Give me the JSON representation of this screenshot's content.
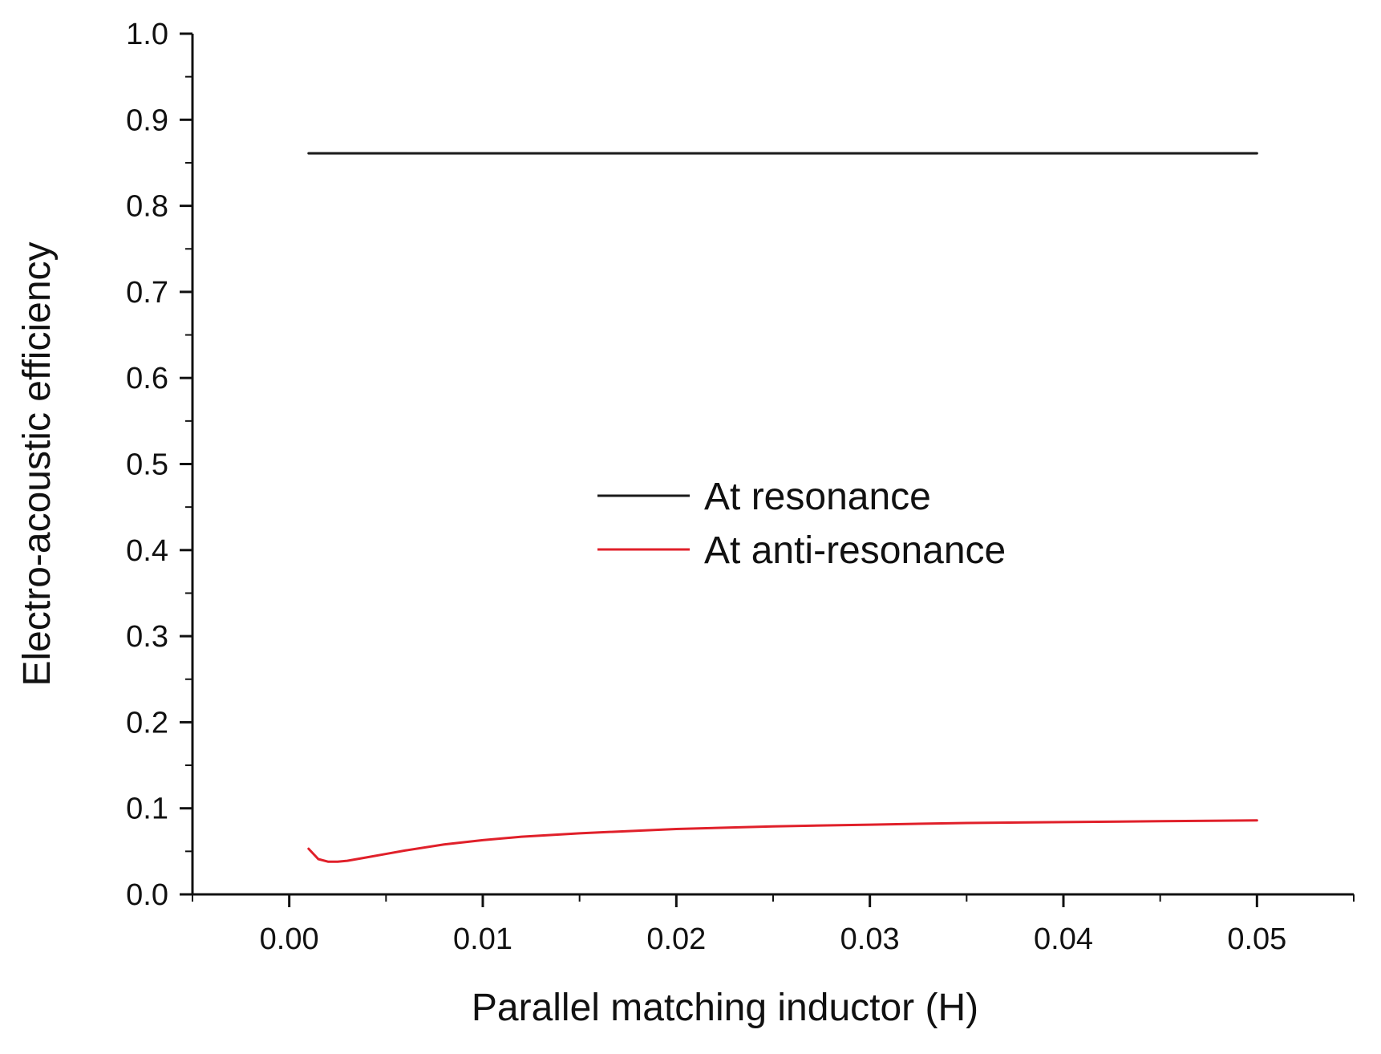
{
  "chart_data": {
    "type": "line",
    "title": "",
    "xlabel": "Parallel matching inductor (H)",
    "ylabel": "Electro-acoustic efficiency",
    "xlim": [
      -0.005,
      0.055
    ],
    "ylim": [
      0.0,
      1.0
    ],
    "x_ticks": [
      0.0,
      0.01,
      0.02,
      0.03,
      0.04,
      0.05
    ],
    "x_tick_labels": [
      "0.00",
      "0.01",
      "0.02",
      "0.03",
      "0.04",
      "0.05"
    ],
    "y_ticks": [
      0.0,
      0.1,
      0.2,
      0.3,
      0.4,
      0.5,
      0.6,
      0.7,
      0.8,
      0.9,
      1.0
    ],
    "y_tick_labels": [
      "0.0",
      "0.1",
      "0.2",
      "0.3",
      "0.4",
      "0.5",
      "0.6",
      "0.7",
      "0.8",
      "0.9",
      "1.0"
    ],
    "grid": false,
    "legend_position": "center",
    "series": [
      {
        "name": "At resonance",
        "color": "#1a1a1a",
        "x": [
          0.001,
          0.05
        ],
        "y": [
          0.861,
          0.861
        ]
      },
      {
        "name": "At anti-resonance",
        "color": "#e0202a",
        "x": [
          0.001,
          0.0015,
          0.002,
          0.0025,
          0.003,
          0.004,
          0.005,
          0.006,
          0.008,
          0.01,
          0.012,
          0.015,
          0.02,
          0.025,
          0.03,
          0.035,
          0.04,
          0.045,
          0.05
        ],
        "y": [
          0.053,
          0.041,
          0.038,
          0.038,
          0.039,
          0.043,
          0.047,
          0.051,
          0.058,
          0.063,
          0.067,
          0.071,
          0.076,
          0.079,
          0.081,
          0.083,
          0.084,
          0.085,
          0.086
        ]
      }
    ]
  }
}
